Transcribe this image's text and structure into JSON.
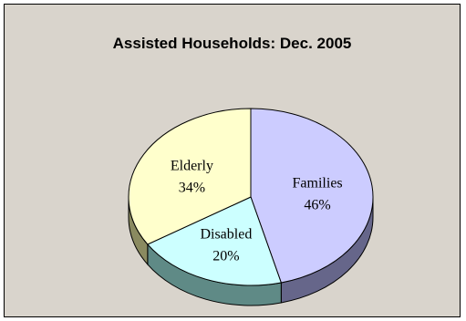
{
  "chart_data": {
    "type": "pie",
    "title": "Assisted Households: Dec. 2005",
    "slices": [
      {
        "label": "Families",
        "value": 46,
        "value_label": "46%",
        "color": "#ccccff",
        "side_color": "#66668a"
      },
      {
        "label": "Disabled",
        "value": 20,
        "value_label": "20%",
        "color": "#ccffff",
        "side_color": "#5f8a86"
      },
      {
        "label": "Elderly",
        "value": 34,
        "value_label": "34%",
        "color": "#ffffcc",
        "side_color": "#8a8a60"
      }
    ],
    "three_d": true,
    "legend": "none"
  }
}
